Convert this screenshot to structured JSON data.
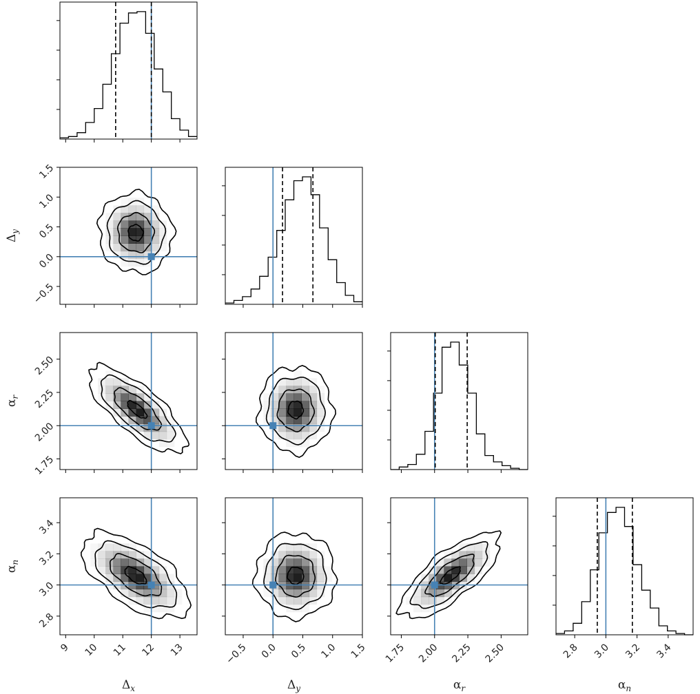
{
  "chart_data": {
    "type": "corner",
    "colors": {
      "truth": "#4682b4",
      "line": "#000000",
      "frame": "#000000",
      "density": "#000000"
    },
    "quantile_lines": "dashed",
    "parameters": [
      {
        "key": "dx",
        "label": "Δx",
        "range": [
          8.8,
          13.6
        ],
        "ticks": [
          "9",
          "10",
          "11",
          "12",
          "13"
        ],
        "tick_values": [
          9,
          10,
          11,
          12,
          13
        ],
        "truth": 12.0,
        "quantiles": [
          10.75,
          12.0
        ],
        "hist_bins": [
          8.8,
          9.1,
          9.4,
          9.7,
          10.0,
          10.3,
          10.6,
          10.9,
          11.2,
          11.5,
          11.8,
          12.1,
          12.4,
          12.7,
          13.0,
          13.3,
          13.6
        ],
        "hist_counts": [
          0.01,
          0.02,
          0.05,
          0.13,
          0.24,
          0.43,
          0.67,
          0.91,
          0.99,
          1.0,
          0.83,
          0.55,
          0.37,
          0.16,
          0.07,
          0.02
        ]
      },
      {
        "key": "dy",
        "label": "Δy",
        "range": [
          -0.8,
          1.5
        ],
        "ticks": [
          "−0.5",
          "0.0",
          "0.5",
          "1.0",
          "1.5"
        ],
        "tick_values": [
          -0.5,
          0.0,
          0.5,
          1.0,
          1.5
        ],
        "truth": 0.0,
        "quantiles": [
          0.16,
          0.67
        ],
        "hist_bins": [
          -0.8,
          -0.656,
          -0.512,
          -0.369,
          -0.225,
          -0.081,
          0.063,
          0.206,
          0.35,
          0.494,
          0.638,
          0.781,
          0.925,
          1.069,
          1.213,
          1.356,
          1.5
        ],
        "hist_counts": [
          0.01,
          0.03,
          0.06,
          0.12,
          0.22,
          0.37,
          0.58,
          0.82,
          0.97,
          1.0,
          0.86,
          0.6,
          0.35,
          0.17,
          0.07,
          0.02
        ]
      },
      {
        "key": "ar",
        "label": "αr",
        "range": [
          1.67,
          2.7
        ],
        "ticks": [
          "1.75",
          "2.00",
          "2.25",
          "2.50"
        ],
        "tick_values": [
          1.75,
          2.0,
          2.25,
          2.5
        ],
        "truth": 2.0,
        "quantiles": [
          2.005,
          2.245
        ],
        "hist_bins": [
          1.67,
          1.7344,
          1.7988,
          1.8631,
          1.9275,
          1.9919,
          2.0563,
          2.1206,
          2.185,
          2.2494,
          2.3138,
          2.3781,
          2.4425,
          2.5069,
          2.5713,
          2.6356,
          2.7
        ],
        "hist_counts": [
          0.0,
          0.02,
          0.04,
          0.12,
          0.3,
          0.6,
          0.96,
          1.0,
          0.82,
          0.6,
          0.28,
          0.11,
          0.06,
          0.03,
          0.01,
          0.0
        ]
      },
      {
        "key": "an",
        "label": "αn",
        "range": [
          2.68,
          3.56
        ],
        "ticks": [
          "2.8",
          "3.0",
          "3.2",
          "3.4"
        ],
        "tick_values": [
          2.8,
          3.0,
          3.2,
          3.4
        ],
        "truth": 3.0,
        "quantiles": [
          2.945,
          3.17
        ],
        "hist_bins": [
          2.68,
          2.735,
          2.79,
          2.845,
          2.9,
          2.955,
          3.01,
          3.065,
          3.12,
          3.175,
          3.23,
          3.285,
          3.34,
          3.395,
          3.45,
          3.505,
          3.56
        ],
        "hist_counts": [
          0.01,
          0.03,
          0.09,
          0.26,
          0.51,
          0.8,
          0.96,
          1.0,
          0.85,
          0.55,
          0.35,
          0.21,
          0.07,
          0.03,
          0.01,
          0.0
        ]
      }
    ],
    "pairs": [
      {
        "x": "dx",
        "y": "dy",
        "center": [
          11.45,
          0.4
        ],
        "rho": -0.05,
        "spread": [
          0.52,
          0.27
        ]
      },
      {
        "x": "dx",
        "y": "ar",
        "center": [
          11.5,
          2.12
        ],
        "rho": -0.75,
        "spread": [
          0.68,
          0.13
        ]
      },
      {
        "x": "dy",
        "y": "ar",
        "center": [
          0.38,
          2.12
        ],
        "rho": 0.0,
        "spread": [
          0.25,
          0.13
        ]
      },
      {
        "x": "dx",
        "y": "an",
        "center": [
          11.45,
          3.06
        ],
        "rho": -0.6,
        "spread": [
          0.75,
          0.11
        ]
      },
      {
        "x": "dy",
        "y": "an",
        "center": [
          0.38,
          3.06
        ],
        "rho": 0.0,
        "spread": [
          0.27,
          0.11
        ]
      },
      {
        "x": "ar",
        "y": "an",
        "center": [
          2.12,
          3.06
        ],
        "rho": 0.75,
        "spread": [
          0.15,
          0.11
        ]
      }
    ],
    "contour_levels": [
      0.5,
      1.2,
      1.9,
      2.5
    ]
  }
}
